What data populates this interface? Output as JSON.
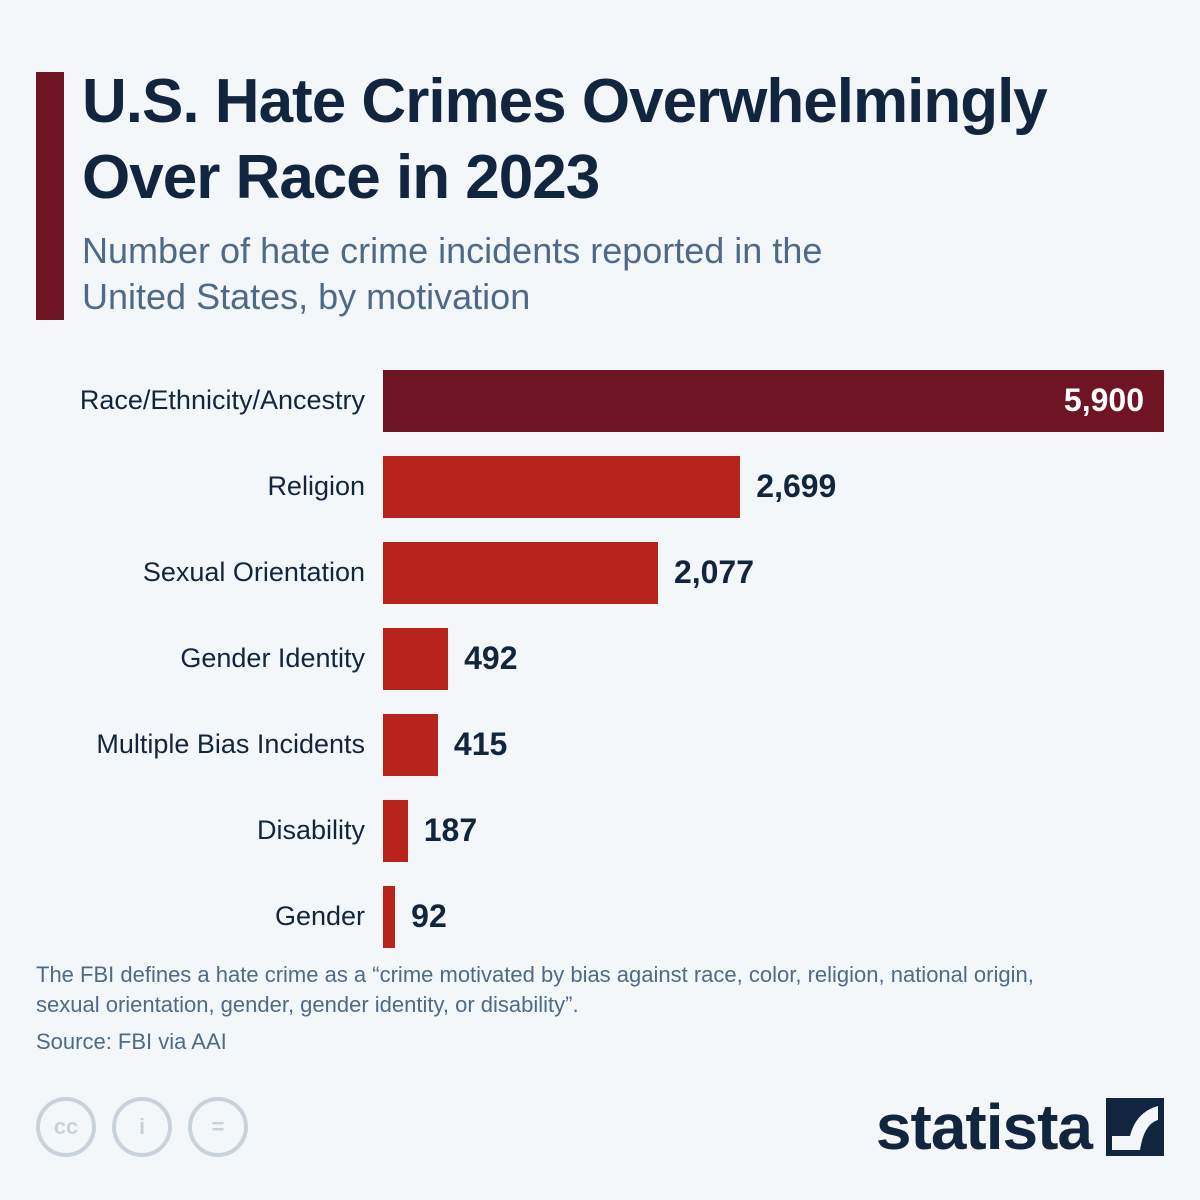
{
  "header": {
    "title": "U.S. Hate Crimes Overwhelmingly Over Race in 2023",
    "subtitle": "Number of hate crime incidents reported in the United States, by motivation"
  },
  "chart_data": {
    "type": "bar",
    "orientation": "horizontal",
    "title": "U.S. Hate Crimes Overwhelmingly Over Race in 2023",
    "subtitle": "Number of hate crime incidents reported in the United States, by motivation",
    "categories": [
      "Race/Ethnicity/Ancestry",
      "Religion",
      "Sexual Orientation",
      "Gender Identity",
      "Multiple Bias Incidents",
      "Disability",
      "Gender"
    ],
    "values": [
      5900,
      2699,
      2077,
      492,
      415,
      187,
      92
    ],
    "value_labels": [
      "5,900",
      "2,699",
      "2,077",
      "492",
      "415",
      "187",
      "92"
    ],
    "colors": {
      "highlight": "#6e1423",
      "default": "#b8241c"
    },
    "grid": false
  },
  "footer": {
    "note": "The FBI defines a hate crime as a “crime motivated by bias against race, color, religion, national origin, sexual orientation, gender, gender identity, or disability”.",
    "source": "Source: FBI via AAI",
    "brand": "statista",
    "license_icons": [
      "cc-icon",
      "attribution-icon",
      "no-derivatives-icon"
    ]
  }
}
